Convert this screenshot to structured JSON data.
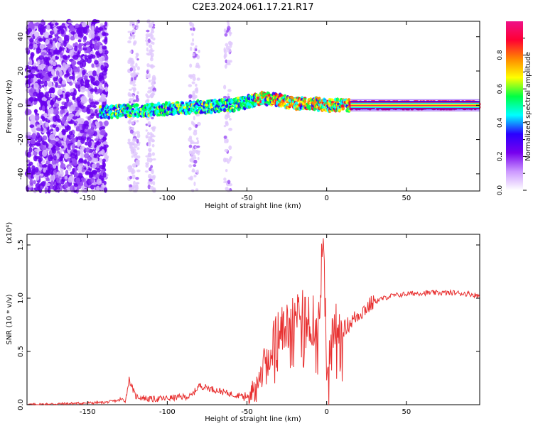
{
  "figure": {
    "title": "C2E3.2024.061.17.21.R17"
  },
  "chart_data": [
    {
      "type": "heatmap",
      "xlabel": "Height of straight line (km)",
      "ylabel": "Frequency (Hz)",
      "xlim": [
        -188,
        96
      ],
      "ylim": [
        -50,
        49
      ],
      "xticks": [
        -150,
        -100,
        -50,
        0,
        50
      ],
      "yticks": [
        -40,
        -20,
        0,
        20,
        40
      ],
      "colorbar": {
        "label": "Normalized spectral amplitude",
        "range": [
          0,
          1
        ],
        "ticks": [
          0.0,
          0.2,
          0.4,
          0.6,
          0.8
        ],
        "colors": [
          "#ffffff",
          "#cc99ff",
          "#7700ee",
          "#2a00ff",
          "#00ffff",
          "#00ff44",
          "#ffff00",
          "#ff8800",
          "#ff0033",
          "#ee1188"
        ]
      },
      "ridge": {
        "description_points_x": [
          -140,
          -120,
          -100,
          -80,
          -60,
          -50,
          -40,
          -30,
          -20,
          -10,
          0,
          10,
          20,
          50,
          96
        ],
        "frequency_hz": [
          -4,
          -3,
          -2,
          -1,
          0,
          2,
          4,
          3,
          1,
          1,
          0,
          0,
          0,
          0,
          0
        ]
      },
      "grid": false
    },
    {
      "type": "line",
      "xlabel": "Height of straight line (km)",
      "ylabel": "SNR (10 * v/v)",
      "scale_note": "(x10⁴)",
      "xlim": [
        -188,
        96
      ],
      "ylim": [
        0,
        1.6
      ],
      "xticks": [
        -150,
        -100,
        -50,
        0,
        50
      ],
      "yticks": [
        0.0,
        0.5,
        1.0,
        1.5
      ],
      "ytick_labels": [
        "0.0",
        "0.5",
        "1.0",
        "1.5"
      ],
      "color": "#e83030",
      "series_anchor_x": [
        -188,
        -140,
        -126,
        -124,
        -120,
        -110,
        -100,
        -85,
        -80,
        -70,
        -60,
        -50,
        -45,
        -40,
        -35,
        -30,
        -25,
        -20,
        -15,
        -10,
        -5,
        -3,
        -2,
        0,
        5,
        10,
        20,
        30,
        40,
        50,
        60,
        70,
        80,
        90,
        96
      ],
      "series_anchor_y": [
        0.0,
        0.02,
        0.05,
        0.24,
        0.08,
        0.05,
        0.06,
        0.08,
        0.18,
        0.14,
        0.1,
        0.08,
        0.2,
        0.35,
        0.55,
        0.7,
        0.75,
        0.85,
        0.85,
        0.8,
        0.75,
        1.35,
        1.6,
        0.3,
        0.75,
        0.7,
        0.85,
        0.97,
        1.02,
        1.04,
        1.05,
        1.05,
        1.05,
        1.04,
        1.02
      ],
      "grid": false
    }
  ]
}
